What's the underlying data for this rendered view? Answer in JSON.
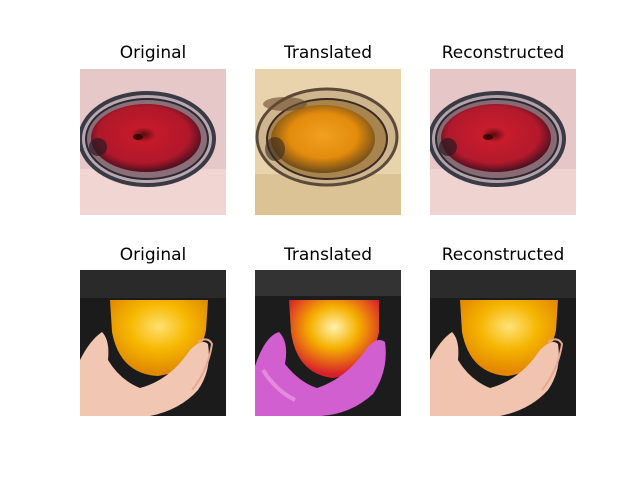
{
  "rows": [
    {
      "subject": "apple-in-glass-bowl",
      "panels": [
        {
          "title": "Original"
        },
        {
          "title": "Translated"
        },
        {
          "title": "Reconstructed"
        }
      ]
    },
    {
      "subject": "orange-held-in-hand",
      "panels": [
        {
          "title": "Original"
        },
        {
          "title": "Translated"
        },
        {
          "title": "Reconstructed"
        }
      ]
    }
  ],
  "palette": {
    "bowl_background": "#e8c9c9",
    "apple_red": "#c21e2b",
    "translated_orange": "#e8900f",
    "translated_background": "#e9d6b0",
    "orange_yellow": "#f5b400",
    "dark_background": "#1c1c1c",
    "skin": "#f2c7b4",
    "skin_translated": "#d35fd1"
  }
}
